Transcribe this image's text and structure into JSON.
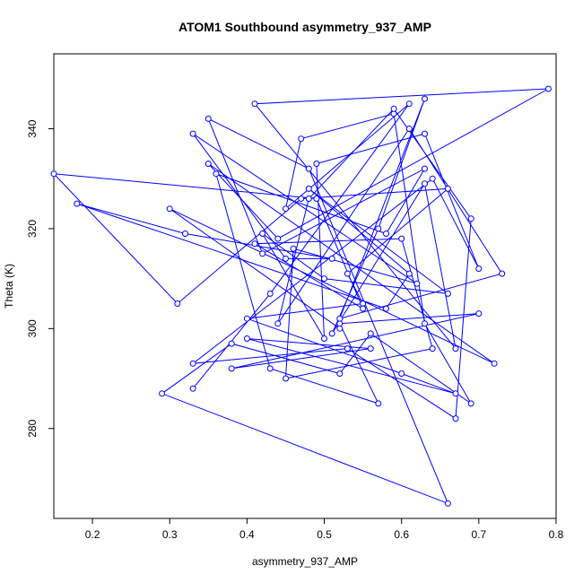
{
  "chart_data": {
    "type": "line",
    "title": "ATOM1 Southbound asymmetry_937_AMP",
    "xlabel": "asymmetry_937_AMP",
    "ylabel": "Theta (K)",
    "xlim": [
      0.15,
      0.8
    ],
    "ylim": [
      262,
      355
    ],
    "xticks": [
      0.2,
      0.3,
      0.4,
      0.5,
      0.6,
      0.7,
      0.8
    ],
    "yticks": [
      280,
      300,
      320,
      340
    ],
    "grid": false,
    "series_color": "#0000ff",
    "series": [
      {
        "x": [
          0.33,
          0.43,
          0.61,
          0.45,
          0.47,
          0.59,
          0.63,
          0.69,
          0.56,
          0.52,
          0.38,
          0.29,
          0.66,
          0.48,
          0.35,
          0.42,
          0.63,
          0.58,
          0.36,
          0.43,
          0.57,
          0.52,
          0.7,
          0.38,
          0.56,
          0.4,
          0.67,
          0.6,
          0.4,
          0.55,
          0.53,
          0.66,
          0.47,
          0.31,
          0.15,
          0.49,
          0.55,
          0.41,
          0.6,
          0.64,
          0.45,
          0.46,
          0.62,
          0.33,
          0.45,
          0.51,
          0.32,
          0.18,
          0.58,
          0.61,
          0.48,
          0.66,
          0.5,
          0.42,
          0.5,
          0.49,
          0.63,
          0.7,
          0.64,
          0.33,
          0.53,
          0.67,
          0.69,
          0.59,
          0.48,
          0.44,
          0.61,
          0.73,
          0.52,
          0.63,
          0.57,
          0.51,
          0.63,
          0.67,
          0.41,
          0.79,
          0.44,
          0.35,
          0.72,
          0.3,
          0.52
        ],
        "y": [
          288,
          307,
          345,
          324,
          338,
          343,
          301,
          285,
          299,
          291,
          297,
          287,
          265,
          332,
          342,
          315,
          332,
          319,
          331,
          292,
          285,
          301,
          303,
          292,
          296,
          298,
          287,
          291,
          302,
          305,
          311,
          328,
          326,
          305,
          331,
          326,
          304,
          317,
          318,
          296,
          290,
          316,
          309,
          339,
          314,
          314,
          319,
          325,
          304,
          311,
          328,
          307,
          310,
          319,
          298,
          333,
          339,
          312,
          330,
          293,
          296,
          282,
          322,
          344,
          326,
          301,
          340,
          311,
          302,
          346,
          320,
          299,
          329,
          296,
          345,
          348,
          318,
          333,
          293,
          324,
          300
        ]
      }
    ]
  }
}
